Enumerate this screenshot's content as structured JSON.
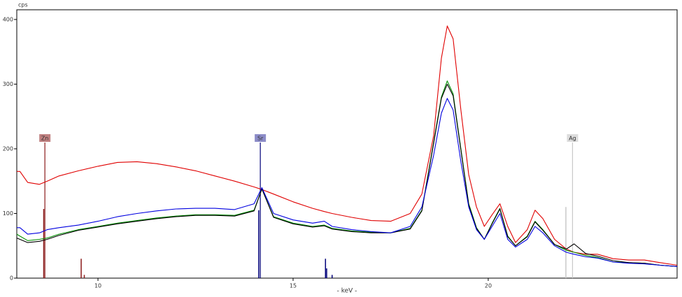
{
  "chart_data": {
    "type": "line",
    "y_label": "cps",
    "x_label": "- keV -",
    "xlim": [
      7.92,
      24.84
    ],
    "ylim": [
      0,
      415
    ],
    "xticks": [
      10,
      15,
      20
    ],
    "yticks": [
      0,
      100,
      200,
      300,
      400
    ],
    "x": [
      7.92,
      8.0,
      8.2,
      8.5,
      8.7,
      9.0,
      9.5,
      10,
      10.5,
      11,
      11.5,
      12,
      12.5,
      13,
      13.5,
      14,
      14.2,
      14.5,
      15,
      15.5,
      15.8,
      16,
      16.5,
      17,
      17.5,
      18,
      18.3,
      18.6,
      18.8,
      18.95,
      19.1,
      19.3,
      19.5,
      19.7,
      19.9,
      20.1,
      20.3,
      20.5,
      20.7,
      21.0,
      21.2,
      21.4,
      21.7,
      22.0,
      22.2,
      22.5,
      22.8,
      23.2,
      23.6,
      24.0,
      24.4,
      24.84
    ],
    "series": [
      {
        "color": "#e00000",
        "values": [
          165,
          165,
          148,
          145,
          150,
          158,
          166,
          173,
          179,
          180,
          177,
          172,
          166,
          158,
          150,
          141,
          137,
          130,
          118,
          108,
          103,
          100,
          94,
          89,
          88,
          100,
          130,
          220,
          340,
          390,
          370,
          260,
          160,
          110,
          80,
          98,
          115,
          80,
          55,
          75,
          105,
          92,
          60,
          45,
          40,
          37,
          37,
          30,
          28,
          28,
          24,
          20
        ]
      },
      {
        "color": "#009000",
        "values": [
          68,
          65,
          58,
          60,
          62,
          68,
          75,
          80,
          85,
          89,
          93,
          96,
          98,
          98,
          97,
          105,
          138,
          95,
          85,
          80,
          82,
          77,
          73,
          71,
          70,
          77,
          105,
          210,
          280,
          305,
          285,
          200,
          115,
          78,
          60,
          85,
          108,
          65,
          50,
          65,
          88,
          75,
          52,
          43,
          40,
          35,
          32,
          25,
          24,
          23,
          20,
          18
        ]
      },
      {
        "color": "#000000",
        "values": [
          62,
          60,
          55,
          57,
          60,
          66,
          74,
          79,
          84,
          88,
          92,
          95,
          97,
          97,
          96,
          104,
          138,
          94,
          84,
          79,
          81,
          76,
          72,
          70,
          70,
          76,
          104,
          208,
          278,
          300,
          282,
          198,
          113,
          77,
          60,
          84,
          107,
          64,
          50,
          64,
          87,
          74,
          52,
          45,
          53,
          38,
          34,
          27,
          24,
          23,
          20,
          18
        ]
      },
      {
        "color": "#0000e0",
        "values": [
          78,
          78,
          68,
          70,
          75,
          78,
          82,
          88,
          95,
          100,
          104,
          107,
          108,
          108,
          106,
          115,
          140,
          100,
          90,
          85,
          88,
          80,
          75,
          72,
          70,
          80,
          110,
          190,
          255,
          278,
          260,
          180,
          110,
          75,
          60,
          80,
          100,
          60,
          48,
          60,
          80,
          70,
          50,
          40,
          37,
          33,
          31,
          25,
          23,
          22,
          20,
          18
        ]
      }
    ],
    "elements": [
      {
        "name": "Zn",
        "color": "#8b1a1a",
        "label_color": "#c08080",
        "energy": 8.64,
        "sticks": {
          "x": [
            8.61,
            9.57,
            9.65
          ],
          "values": [
            107,
            30,
            5
          ]
        }
      },
      {
        "name": "Sr",
        "color": "#00007a",
        "label_color": "#8c8cc8",
        "energy": 14.16,
        "sticks": {
          "x": [
            14.12,
            15.83,
            15.86,
            16.0
          ],
          "values": [
            105,
            30,
            15,
            5
          ]
        }
      },
      {
        "name": "Ag",
        "color": "#c8c8c8",
        "label_color": "#dcdcdc",
        "energy": 22.16,
        "sticks": {
          "x": [
            21.99
          ],
          "values": [
            110
          ]
        }
      }
    ]
  }
}
